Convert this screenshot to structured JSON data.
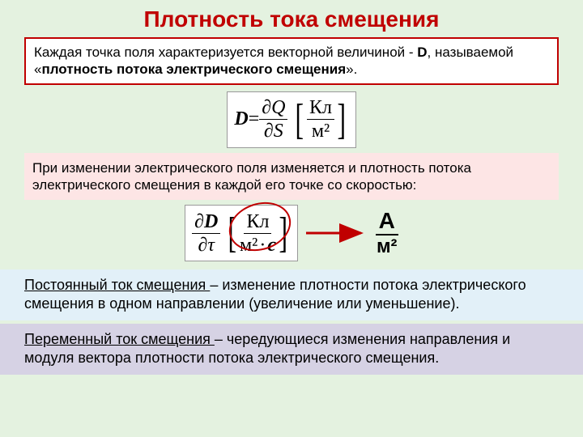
{
  "colors": {
    "slide_bg": "#e4f2e0",
    "title_color": "#c00000",
    "box1_border": "#c00000",
    "box1_bg": "#ffffff",
    "box2_bg": "#fde5e5",
    "box3_bg": "#e2f0f8",
    "box4_bg": "#d6d2e4",
    "text_color": "#000000",
    "arrow_color": "#c00000",
    "ellipse_color": "#c00000",
    "unit_color": "#000000"
  },
  "fonts": {
    "title_size": 28,
    "body_size": 17,
    "formula_size": 24,
    "unit_big": 28
  },
  "title": "Плотность тока  смещения",
  "box1": {
    "pre": "Каждая точка поля характеризуется векторной величиной -  ",
    "D": "D",
    "mid": ", называемой «",
    "bold": "плотность потока электрического смещения",
    "post": "»."
  },
  "formula1": {
    "lhs": "D",
    "eq": " = ",
    "num": "∂Q",
    "den": "∂S",
    "unit_num": "Кл",
    "unit_den": "м²"
  },
  "box2": "При изменении электрического поля изменяется и плотность потока электрического смещения в каждой его точке со скоростью:",
  "formula2": {
    "num": "∂D",
    "den": "∂τ",
    "unit_num": "Кл",
    "unit_den1": "м²",
    "unit_den2": "с",
    "unit_dot": "·"
  },
  "unit_right": {
    "num": "А",
    "den": "м²"
  },
  "box3": {
    "u": "Постоянный ток смещения ",
    "rest": "– изменение плотности потока электрического смещения в одном направлении (увеличение или уменьшение)."
  },
  "box4": {
    "u": "Переменный ток смещения ",
    "rest": "– чередующиеся изменения направления и модуля вектора плотности потока электрического смещения."
  }
}
